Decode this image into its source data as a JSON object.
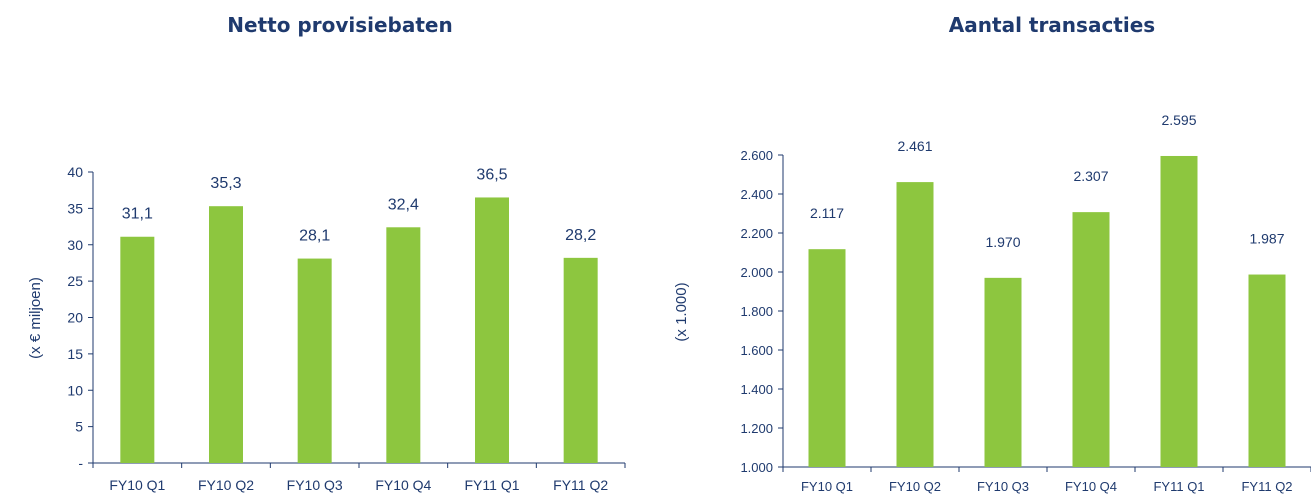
{
  "colors": {
    "bar": "#8dc63f",
    "text": "#1f3a6e"
  },
  "chart_data": [
    {
      "type": "bar",
      "title": "Netto provisiebaten",
      "ylabel": "(x € miljoen)",
      "xlabel": "",
      "categories": [
        "FY10 Q1",
        "FY10 Q2",
        "FY10 Q3",
        "FY10 Q4",
        "FY11 Q1",
        "FY11 Q2"
      ],
      "values": [
        31.1,
        35.3,
        28.1,
        32.4,
        36.5,
        28.2
      ],
      "value_labels": [
        "31,1",
        "35,3",
        "28,1",
        "32,4",
        "36,5",
        "28,2"
      ],
      "ylim": [
        0,
        40
      ],
      "yticks": [
        0,
        5,
        10,
        15,
        20,
        25,
        30,
        35,
        40
      ],
      "ytick_labels": [
        "-",
        "5",
        "10",
        "15",
        "20",
        "25",
        "30",
        "35",
        "40"
      ],
      "grid": false,
      "legend": "none"
    },
    {
      "type": "bar",
      "title": "Aantal transacties",
      "ylabel": "(x 1.000)",
      "xlabel": "",
      "categories": [
        "FY10 Q1",
        "FY10 Q2",
        "FY10 Q3",
        "FY10 Q4",
        "FY11 Q1",
        "FY11 Q2"
      ],
      "values": [
        2117,
        2461,
        1970,
        2307,
        2595,
        1987
      ],
      "value_labels": [
        "2.117",
        "2.461",
        "1.970",
        "2.307",
        "2.595",
        "1.987"
      ],
      "ylim": [
        1000,
        2600
      ],
      "yticks": [
        1000,
        1200,
        1400,
        1600,
        1800,
        2000,
        2200,
        2400,
        2600
      ],
      "ytick_labels": [
        "1.000",
        "1.200",
        "1.400",
        "1.600",
        "1.800",
        "2.000",
        "2.200",
        "2.400",
        "2.600"
      ],
      "grid": false,
      "legend": "none"
    }
  ]
}
